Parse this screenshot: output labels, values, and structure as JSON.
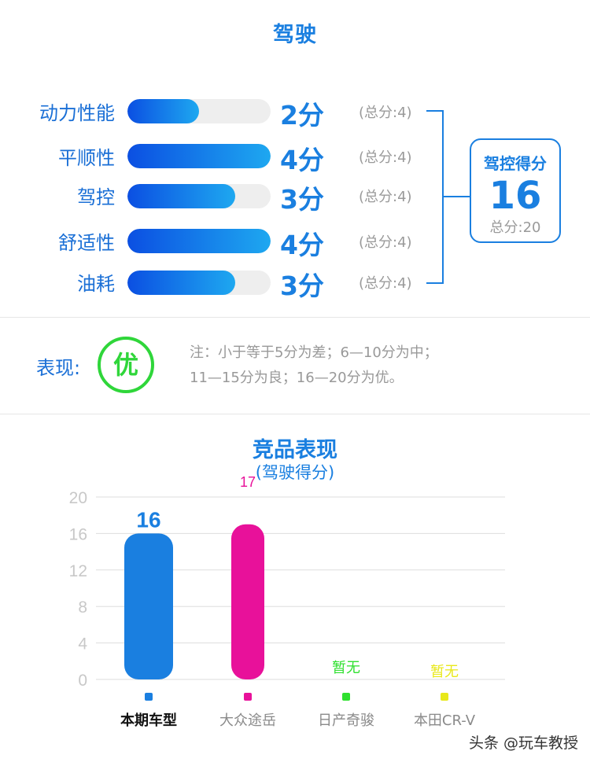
{
  "header": {
    "title": "驾驶"
  },
  "rows": [
    {
      "label": "动力性能",
      "score_text": "2分",
      "total_text": "(总分:4)",
      "score": 2,
      "max": 4
    },
    {
      "label": "平顺性",
      "score_text": "4分",
      "total_text": "(总分:4)",
      "score": 4,
      "max": 4
    },
    {
      "label": "驾控",
      "score_text": "3分",
      "total_text": "(总分:4)",
      "score": 3,
      "max": 4
    },
    {
      "label": "舒适性",
      "score_text": "4分",
      "total_text": "(总分:4)",
      "score": 4,
      "max": 4
    },
    {
      "label": "油耗",
      "score_text": "3分",
      "total_text": "(总分:4)",
      "score": 3,
      "max": 4
    }
  ],
  "summary": {
    "label": "驾控得分",
    "value": "16",
    "total": "总分:20"
  },
  "performance": {
    "label": "表现:",
    "grade": "优",
    "note_line1": "注：小于等于5分为差；6—10分为中；",
    "note_line2": "11—15分为良；16—20分为优。"
  },
  "chart_section": {
    "title": "竞品表现",
    "subtitle": "(驾驶得分)"
  },
  "chart_data": {
    "type": "bar",
    "categories": [
      "本期车型",
      "大众途岳",
      "日产奇骏",
      "本田CR-V"
    ],
    "values": [
      16,
      17,
      null,
      null
    ],
    "value_labels": [
      "16",
      "17",
      "暂无",
      "暂无"
    ],
    "colors": [
      "#1a7fe0",
      "#e8119a",
      "#2fe02f",
      "#e8e81a"
    ],
    "ylim": [
      0,
      20
    ],
    "yticks": [
      "0",
      "4",
      "8",
      "12",
      "16",
      "20"
    ],
    "grid": true,
    "highlight_category": "本期车型"
  },
  "watermark": "头条 @玩车教授",
  "colors": {
    "accent": "#1a7fe0",
    "grade": "#2fd63a"
  }
}
